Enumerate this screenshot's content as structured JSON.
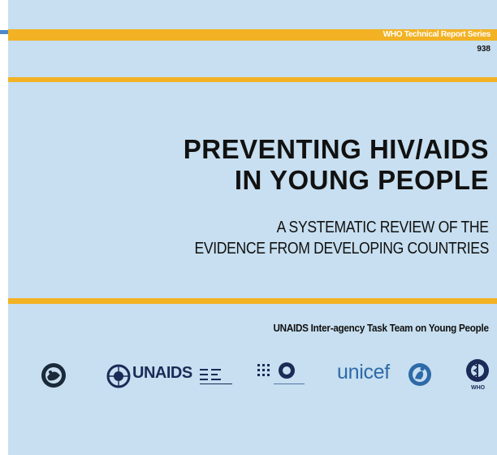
{
  "series": {
    "name": "WHO Technical Report Series",
    "number": "938"
  },
  "title": {
    "line1": "PREVENTING HIV/AIDS",
    "line2": "IN YOUNG PEOPLE"
  },
  "subtitle": {
    "line1": "A SYSTEMATIC REVIEW OF THE",
    "line2": "EVIDENCE FROM DEVELOPING COUNTRIES"
  },
  "task_team": "UNAIDS Inter-agency Task Team on Young People",
  "logos": {
    "unaids": "UNAIDS",
    "unicef": "unicef",
    "who": "WHO"
  },
  "colors": {
    "background": "#c7dff0",
    "band": "#f2b224",
    "accent_blue": "#4d89c9",
    "text": "#111111"
  }
}
